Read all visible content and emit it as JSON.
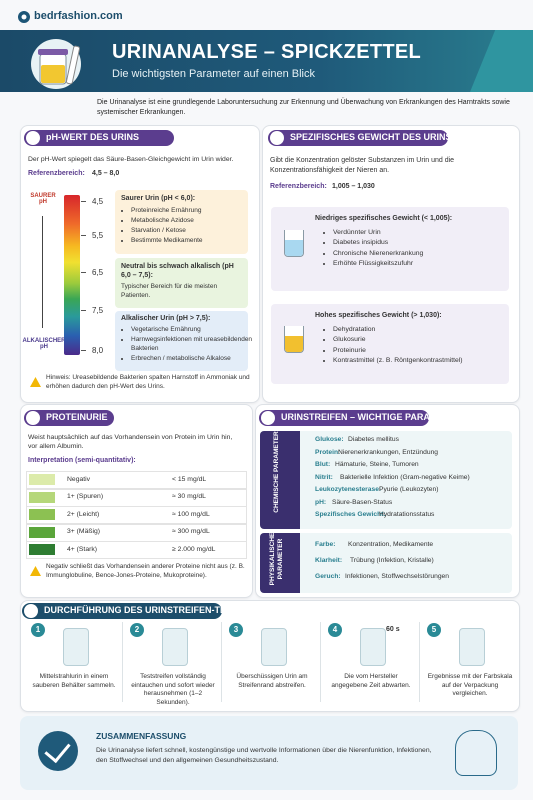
{
  "brand": "bedrfashion.com",
  "header": {
    "title": "URINANALYSE – SPICKZETTEL",
    "subtitle": "Die wichtigsten Parameter auf einen Blick"
  },
  "intro": "Die Urinanalyse ist eine grundlegende Laboruntersuchung zur Erkennung und Überwachung von Erkrankungen des Harntrakts sowie systemischer Erkrankungen.",
  "ph": {
    "title": "pH-WERT DES URINS",
    "text": "Der pH-Wert spiegelt das Säure-Basen-Gleichgewicht im Urin wider.",
    "reference_label": "Referenzbereich:",
    "reference_value": "4,5 – 8,0",
    "top_label": "SAURER pH",
    "bottom_label": "ALKALISCHER pH",
    "scale": [
      "4,5",
      "5,5",
      "6,5",
      "7,5",
      "8,0"
    ],
    "acid": {
      "title": "Saurer Urin (pH < 6,0):",
      "items": [
        "Proteinreiche Ernährung",
        "Metabolische Azidose",
        "Starvation / Ketose",
        "Bestimmte Medikamente"
      ]
    },
    "neutral": {
      "title": "Neutral bis schwach alkalisch (pH 6,0 – 7,5):",
      "text": "Typischer Bereich für die meisten Patienten."
    },
    "alkaline": {
      "title": "Alkalischer Urin (pH > 7,5):",
      "items": [
        "Vegetarische Ernährung",
        "Harnwegsinfektionen mit ureasebildenden Bakterien",
        "Erbrechen / metabolische Alkalose"
      ]
    },
    "note": "Hinweis: Ureasebildende Bakterien spalten Harnstoff in Ammoniak und erhöhen dadurch den pH-Wert des Urins."
  },
  "gravity": {
    "title": "SPEZIFISCHES GEWICHT DES URINS",
    "text": "Gibt die Konzentration gelöster Substanzen im Urin und die Konzentrationsfähigkeit der Nieren an.",
    "reference_label": "Referenzbereich:",
    "reference_value": "1,005 – 1,030",
    "low": {
      "title": "Niedriges spezifisches Gewicht (< 1,005):",
      "items": [
        "Verdünnter Urin",
        "Diabetes insipidus",
        "Chronische Nierenerkrankung",
        "Erhöhte Flüssigkeitszufuhr"
      ]
    },
    "high": {
      "title": "Hohes spezifisches Gewicht (> 1,030):",
      "items": [
        "Dehydratation",
        "Glukosurie",
        "Proteinurie",
        "Kontrastmittel (z. B. Röntgenkontrastmittel)"
      ]
    }
  },
  "proteinuria": {
    "title": "PROTEINURIE",
    "text": "Weist hauptsächlich auf das Vorhandensein von Protein im Urin hin, vor allem Albumin.",
    "interpretation": "Interpretation (semi-quantitativ):",
    "rows": [
      [
        "Negativ",
        "< 15 mg/dL"
      ],
      [
        "1+ (Spuren)",
        "≈ 30 mg/dL"
      ],
      [
        "2+ (Leicht)",
        "≈ 100 mg/dL"
      ],
      [
        "3+ (Mäßig)",
        "≈ 300 mg/dL"
      ],
      [
        "4+ (Stark)",
        "≥ 2.000 mg/dL"
      ]
    ],
    "note": "Negativ schließt das Vorhandensein anderer Proteine nicht aus (z. B. Immunglobuline, Bence-Jones-Proteine, Mukoproteine)."
  },
  "strip": {
    "title": "URINSTREIFEN – WICHTIGE PARAMETER",
    "chemical": {
      "label": "CHEMISCHE PARAMETER",
      "rows": [
        [
          "Glukose:",
          "Diabetes mellitus"
        ],
        [
          "Protein:",
          "Nierenerkrankungen, Entzündung"
        ],
        [
          "Blut:",
          "Hämaturie, Steine, Tumoren"
        ],
        [
          "Nitrit:",
          "Bakterielle Infektion (Gram-negative Keime)"
        ],
        [
          "Leukozytenesterase:",
          "Pyurie (Leukozyten)"
        ],
        [
          "pH:",
          "Säure-Basen-Status"
        ],
        [
          "Spezifisches Gewicht:",
          "Hydratationsstatus"
        ]
      ]
    },
    "physical": {
      "label": "PHYSIKALISCHE PARAMETER",
      "rows": [
        [
          "Farbe:",
          "Konzentration, Medikamente"
        ],
        [
          "Klarheit:",
          "Trübung (Infektion, Kristalle)"
        ],
        [
          "Geruch:",
          "Infektionen, Stoffwechselstörungen"
        ]
      ]
    }
  },
  "procedure": {
    "title": "DURCHFÜHRUNG DES URINSTREIFEN-TESTS",
    "steps": [
      {
        "number": "1",
        "text": "Mittelstrahlurin in einem sauberen Behälter sammeln."
      },
      {
        "number": "2",
        "text": "Teststreifen vollständig eintauchen und sofort wieder herausnehmen (1–2 Sekunden)."
      },
      {
        "number": "3",
        "text": "Überschüssigen Urin am Streifenrand abstreifen."
      },
      {
        "number": "4",
        "text": "Die vom Hersteller angegebene Zeit abwarten.",
        "timer": "60 s"
      },
      {
        "number": "5",
        "text": "Ergebnisse mit der Farbskala auf der Verpackung vergleichen."
      }
    ]
  },
  "summary": {
    "title": "ZUSAMMENFASSUNG",
    "text": "Die Urinanalyse liefert schnell, kostengünstige und wertvolle Informationen über die Nierenfunktion, Infektionen, den Stoffwechsel und den allgemeinen Gesundheitszustand."
  }
}
